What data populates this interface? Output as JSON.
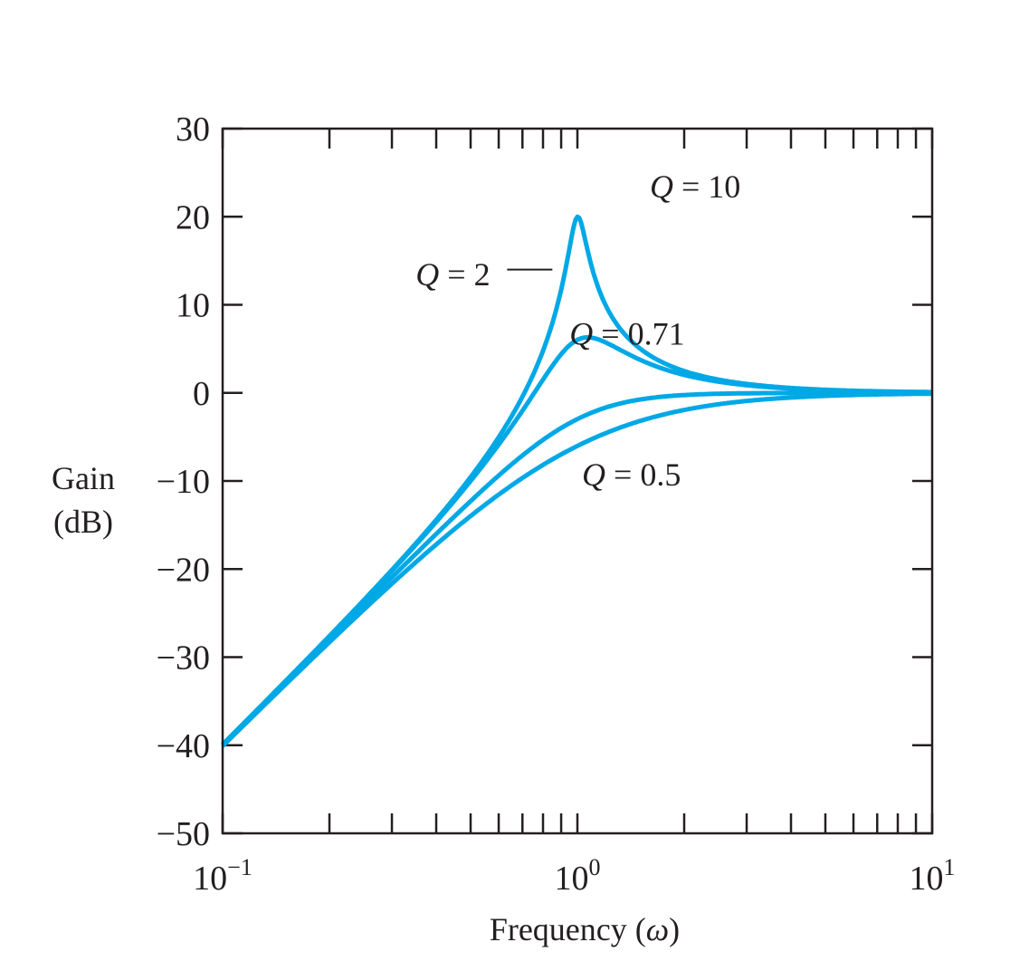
{
  "chart_data": {
    "type": "line",
    "title": "",
    "xlabel_prefix": "Frequency (",
    "xlabel_symbol": "ω",
    "xlabel_suffix": ")",
    "ylabel": [
      "Gain",
      "(dB)"
    ],
    "xscale": "log",
    "xlim": [
      0.1,
      10
    ],
    "ylim": [
      -50,
      30
    ],
    "yticks": [
      30,
      20,
      10,
      0,
      -10,
      -20,
      -30,
      -40,
      -50
    ],
    "ytick_labels": [
      "30",
      "20",
      "10",
      "0",
      "−10",
      "−20",
      "−30",
      "−40",
      "−50"
    ],
    "xticks": [
      {
        "value": 0.1,
        "base": "10",
        "exp": "−1"
      },
      {
        "value": 1,
        "base": "10",
        "exp": "0"
      },
      {
        "value": 10,
        "base": "10",
        "exp": "1"
      }
    ],
    "line_color": "#00a8e6",
    "series": [
      {
        "name": "Q = 10",
        "q": 10
      },
      {
        "name": "Q = 2",
        "q": 2
      },
      {
        "name": "Q = 0.71",
        "q": 0.71
      },
      {
        "name": "Q = 0.5",
        "q": 0.5
      }
    ],
    "annotations": [
      {
        "symbol": "Q",
        "text": " = 10",
        "x": 1.6,
        "y": 22.2
      },
      {
        "symbol": "Q",
        "text": " = 2",
        "x": 0.35,
        "y": 12.2,
        "leader_to": [
          0.85,
          14
        ]
      },
      {
        "symbol": "Q",
        "text": " = 0.71",
        "x": 0.95,
        "y": 5.5
      },
      {
        "symbol": "Q",
        "text": " = 0.5",
        "x": 1.03,
        "y": -10.5
      }
    ]
  }
}
